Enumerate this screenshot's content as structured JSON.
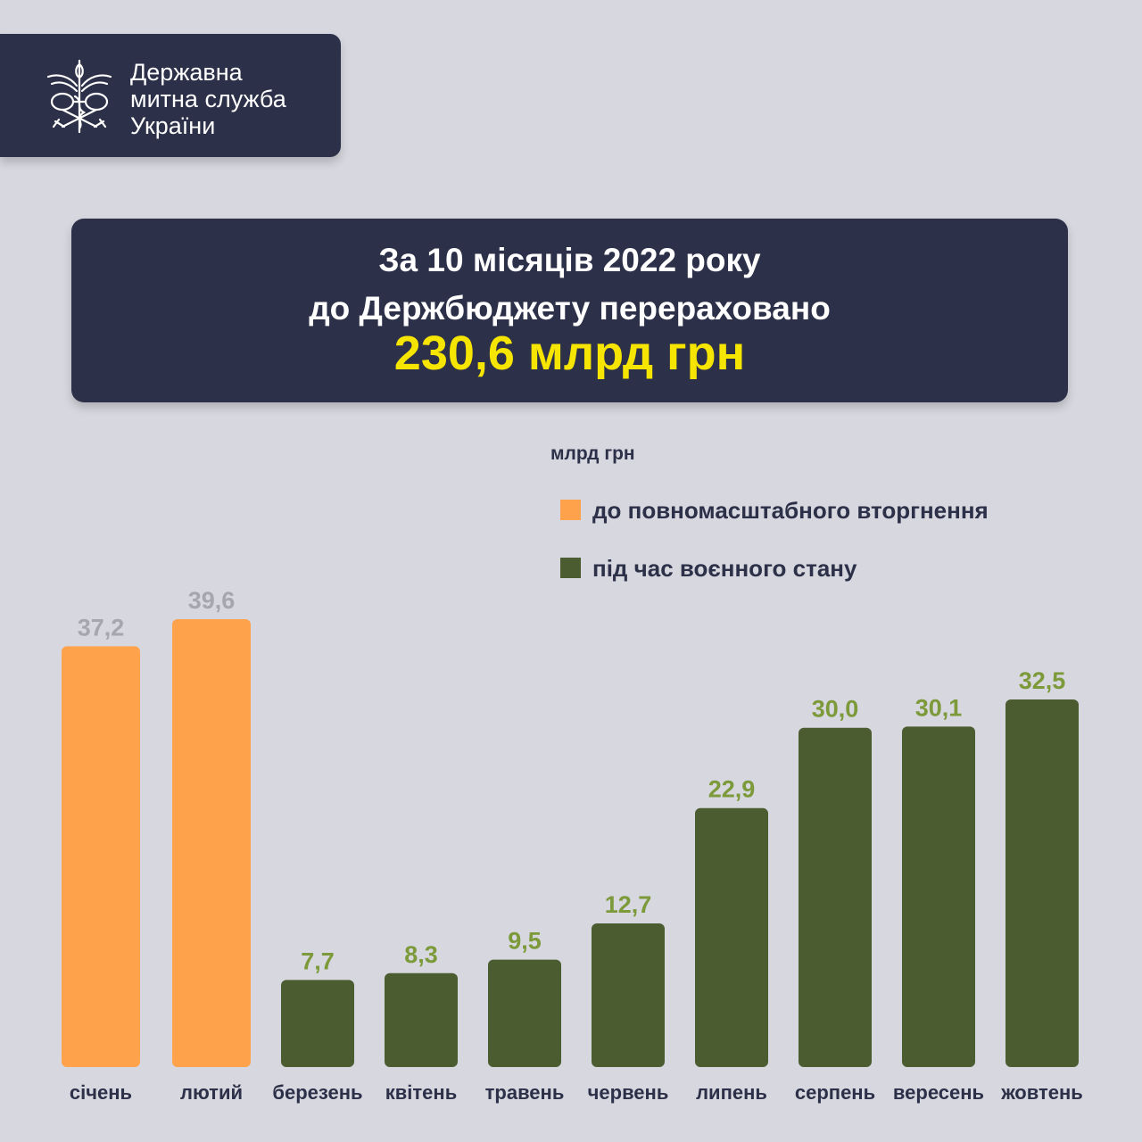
{
  "header": {
    "org_line1": "Державна",
    "org_line2": "митна служба",
    "org_line3": "України"
  },
  "headline": {
    "line1": "За 10 місяців 2022 року",
    "line2": "до Держбюджету перераховано",
    "total": "230,6 млрд грн"
  },
  "unit_label": "млрд грн",
  "legend": {
    "before": "до повномасштабного вторгнення",
    "during": "під час воєнного стану"
  },
  "colors": {
    "before": "#ffa24c",
    "during": "#4c5c31",
    "before_value_text": "#a6a6ae",
    "during_value_text": "#7c9a3a",
    "panel": "#2c3048",
    "accent": "#f6e500"
  },
  "chart_data": {
    "type": "bar",
    "categories": [
      "січень",
      "лютий",
      "березень",
      "квітень",
      "травень",
      "червень",
      "липень",
      "серпень",
      "вересень",
      "жовтень"
    ],
    "values": [
      37.2,
      39.6,
      7.7,
      8.3,
      9.5,
      12.7,
      22.9,
      30.0,
      30.1,
      32.5
    ],
    "value_labels": [
      "37,2",
      "39,6",
      "7,7",
      "8,3",
      "9,5",
      "12,7",
      "22,9",
      "30,0",
      "30,1",
      "32,5"
    ],
    "period": [
      "before",
      "before",
      "during",
      "during",
      "during",
      "during",
      "during",
      "during",
      "during",
      "during"
    ],
    "ylabel": "млрд грн",
    "ylim": [
      0,
      39.6
    ],
    "grid": false,
    "legend_position": "top-right"
  }
}
